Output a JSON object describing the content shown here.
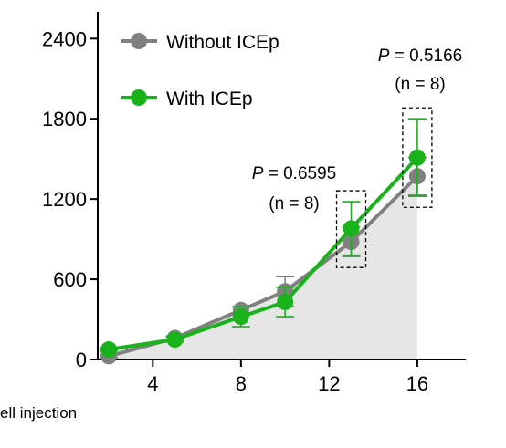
{
  "chart_data": {
    "type": "line",
    "xlabel": "ell injection",
    "ylabel": "",
    "x_ticks": [
      4,
      8,
      12,
      16
    ],
    "y_ticks": [
      0,
      600,
      1200,
      1800,
      2400
    ],
    "xlim": [
      1.5,
      18.2
    ],
    "ylim": [
      0,
      2600
    ],
    "grid": false,
    "legend_position": "top-left",
    "series": [
      {
        "name": "Without ICEp",
        "color": "#808080",
        "x": [
          2,
          5,
          8,
          10,
          13,
          16
        ],
        "y": [
          25,
          160,
          370,
          510,
          880,
          1370
        ],
        "err": [
          10,
          15,
          25,
          110,
          110,
          140
        ]
      },
      {
        "name": "With ICEp",
        "color": "#1ab21a",
        "x": [
          2,
          5,
          8,
          10,
          13,
          16
        ],
        "y": [
          75,
          150,
          320,
          430,
          980,
          1510
        ],
        "err": [
          10,
          20,
          75,
          110,
          200,
          290
        ]
      }
    ],
    "annotations": [
      {
        "p_label": "P",
        "p_value": "= 0.6595",
        "n_label": "(n = 8)"
      },
      {
        "p_label": "P",
        "p_value": "= 0.5166",
        "n_label": "(n = 8)"
      }
    ]
  }
}
